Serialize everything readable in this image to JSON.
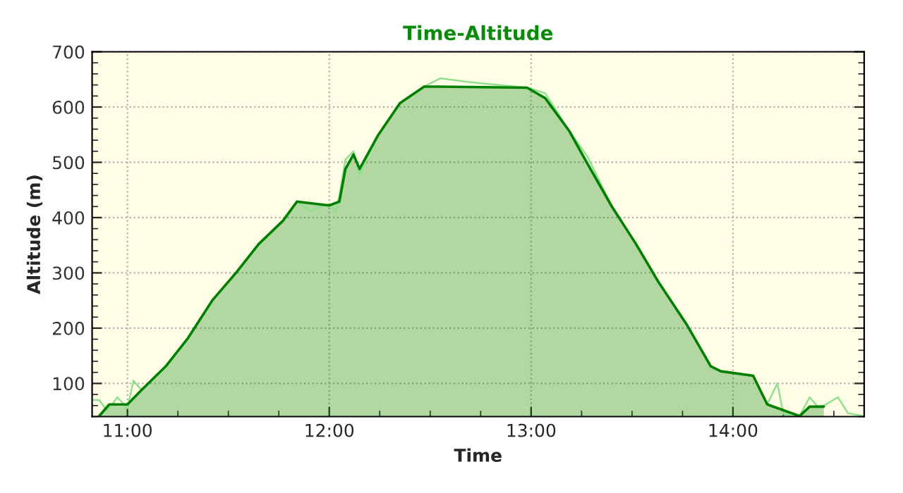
{
  "chart_data": {
    "type": "area",
    "title": "Time-Altitude",
    "xlabel": "Time",
    "ylabel": "Altitude (m)",
    "xlim": [
      10.825,
      14.65
    ],
    "ylim": [
      40,
      700
    ],
    "xticks": [
      {
        "value": 11,
        "label": "11:00"
      },
      {
        "value": 12,
        "label": "12:00"
      },
      {
        "value": 13,
        "label": "13:00"
      },
      {
        "value": 14,
        "label": "14:00"
      }
    ],
    "yticks": [
      100,
      200,
      300,
      400,
      500,
      600,
      700
    ],
    "grid": true,
    "line_style": "solid",
    "marker": "none",
    "series": [
      {
        "type": "line",
        "color": "#90e090",
        "x": [
          10.83,
          10.86,
          10.9,
          10.95,
          11.0,
          11.03,
          11.07,
          11.19,
          11.3,
          11.42,
          11.54,
          11.65,
          11.77,
          11.84,
          11.9,
          12.0,
          12.03,
          12.05,
          12.08,
          12.12,
          12.15,
          12.24,
          12.35,
          12.47,
          12.55,
          12.7,
          12.98,
          13.07,
          13.19,
          13.28,
          13.4,
          13.52,
          13.63,
          13.77,
          13.89,
          13.94,
          14.1,
          14.17,
          14.22,
          14.25,
          14.33,
          14.38,
          14.42,
          14.45,
          14.52,
          14.57,
          14.65
        ],
        "values": [
          70,
          70,
          50,
          75,
          55,
          105,
          88,
          131,
          182,
          250,
          301,
          352,
          394,
          430,
          412,
          425,
          410,
          440,
          505,
          520,
          478,
          548,
          607,
          637,
          652,
          645,
          635,
          625,
          556,
          510,
          420,
          352,
          284,
          207,
          131,
          122,
          114,
          62,
          100,
          45,
          41,
          75,
          58,
          60,
          75,
          46,
          41
        ]
      },
      {
        "color": "#008000",
        "x": [
          10.86,
          10.91,
          11.0,
          11.07,
          11.19,
          11.3,
          11.42,
          11.54,
          11.65,
          11.77,
          11.84,
          12.0,
          12.05,
          12.08,
          12.12,
          12.15,
          12.24,
          12.35,
          12.47,
          12.54,
          12.98,
          13.07,
          13.19,
          13.28,
          13.4,
          13.52,
          13.63,
          13.77,
          13.89,
          13.94,
          14.1,
          14.17,
          14.33,
          14.38,
          14.45
        ],
        "values": [
          41,
          62,
          62,
          88,
          131,
          182,
          250,
          301,
          352,
          394,
          429,
          422,
          429,
          488,
          514,
          488,
          548,
          607,
          637,
          637,
          635,
          616,
          556,
          497,
          420,
          352,
          284,
          207,
          131,
          122,
          114,
          62,
          41,
          58,
          58
        ]
      }
    ]
  }
}
